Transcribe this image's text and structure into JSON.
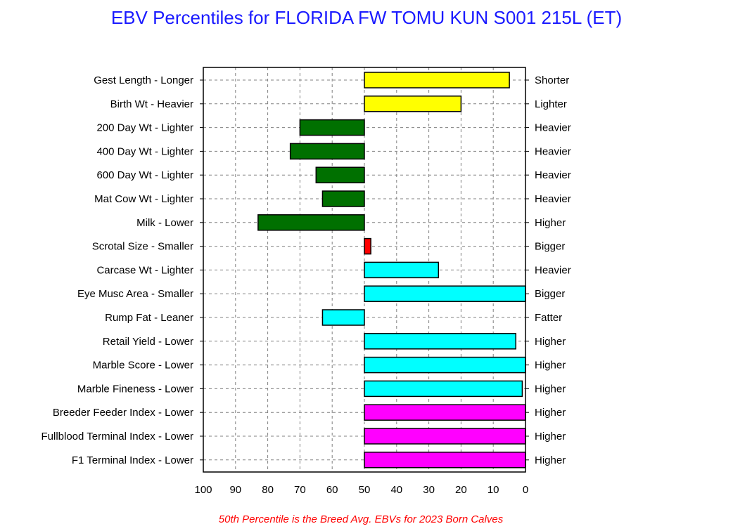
{
  "title": "EBV Percentiles for FLORIDA FW TOMU KUN S001 215L (ET)",
  "footnote": "50th Percentile is the Breed Avg. EBVs for 2023 Born Calves",
  "chart_data": {
    "type": "bar",
    "orientation": "horizontal",
    "x_axis": {
      "reversed": true,
      "range": [
        100,
        0
      ],
      "ticks": [
        100,
        90,
        80,
        70,
        60,
        50,
        40,
        30,
        20,
        10,
        0
      ]
    },
    "baseline": 50,
    "grid": true,
    "rows": [
      {
        "left": "Gest Length - Longer",
        "right": "Shorter",
        "value": 5,
        "color": "#ffff00"
      },
      {
        "left": "Birth Wt - Heavier",
        "right": "Lighter",
        "value": 20,
        "color": "#ffff00"
      },
      {
        "left": "200 Day Wt - Lighter",
        "right": "Heavier",
        "value": 70,
        "color": "#007000"
      },
      {
        "left": "400 Day Wt - Lighter",
        "right": "Heavier",
        "value": 73,
        "color": "#007000"
      },
      {
        "left": "600 Day Wt - Lighter",
        "right": "Heavier",
        "value": 65,
        "color": "#007000"
      },
      {
        "left": "Mat Cow Wt - Lighter",
        "right": "Heavier",
        "value": 63,
        "color": "#007000"
      },
      {
        "left": "Milk - Lower",
        "right": "Higher",
        "value": 83,
        "color": "#007000"
      },
      {
        "left": "Scrotal Size - Smaller",
        "right": "Bigger",
        "value": 48,
        "color": "#ff0000"
      },
      {
        "left": "Carcase Wt - Lighter",
        "right": "Heavier",
        "value": 27,
        "color": "#00ffff"
      },
      {
        "left": "Eye Musc Area - Smaller",
        "right": "Bigger",
        "value": 0,
        "color": "#00ffff"
      },
      {
        "left": "Rump Fat - Leaner",
        "right": "Fatter",
        "value": 63,
        "color": "#00ffff"
      },
      {
        "left": "Retail Yield - Lower",
        "right": "Higher",
        "value": 3,
        "color": "#00ffff"
      },
      {
        "left": "Marble Score - Lower",
        "right": "Higher",
        "value": 0,
        "color": "#00ffff"
      },
      {
        "left": "Marble Fineness - Lower",
        "right": "Higher",
        "value": 1,
        "color": "#00ffff"
      },
      {
        "left": "Breeder Feeder Index - Lower",
        "right": "Higher",
        "value": 0,
        "color": "#ff00ff"
      },
      {
        "left": "Fullblood Terminal Index - Lower",
        "right": "Higher",
        "value": 0,
        "color": "#ff00ff"
      },
      {
        "left": "F1 Terminal Index - Lower",
        "right": "Higher",
        "value": 0,
        "color": "#ff00ff"
      }
    ]
  }
}
